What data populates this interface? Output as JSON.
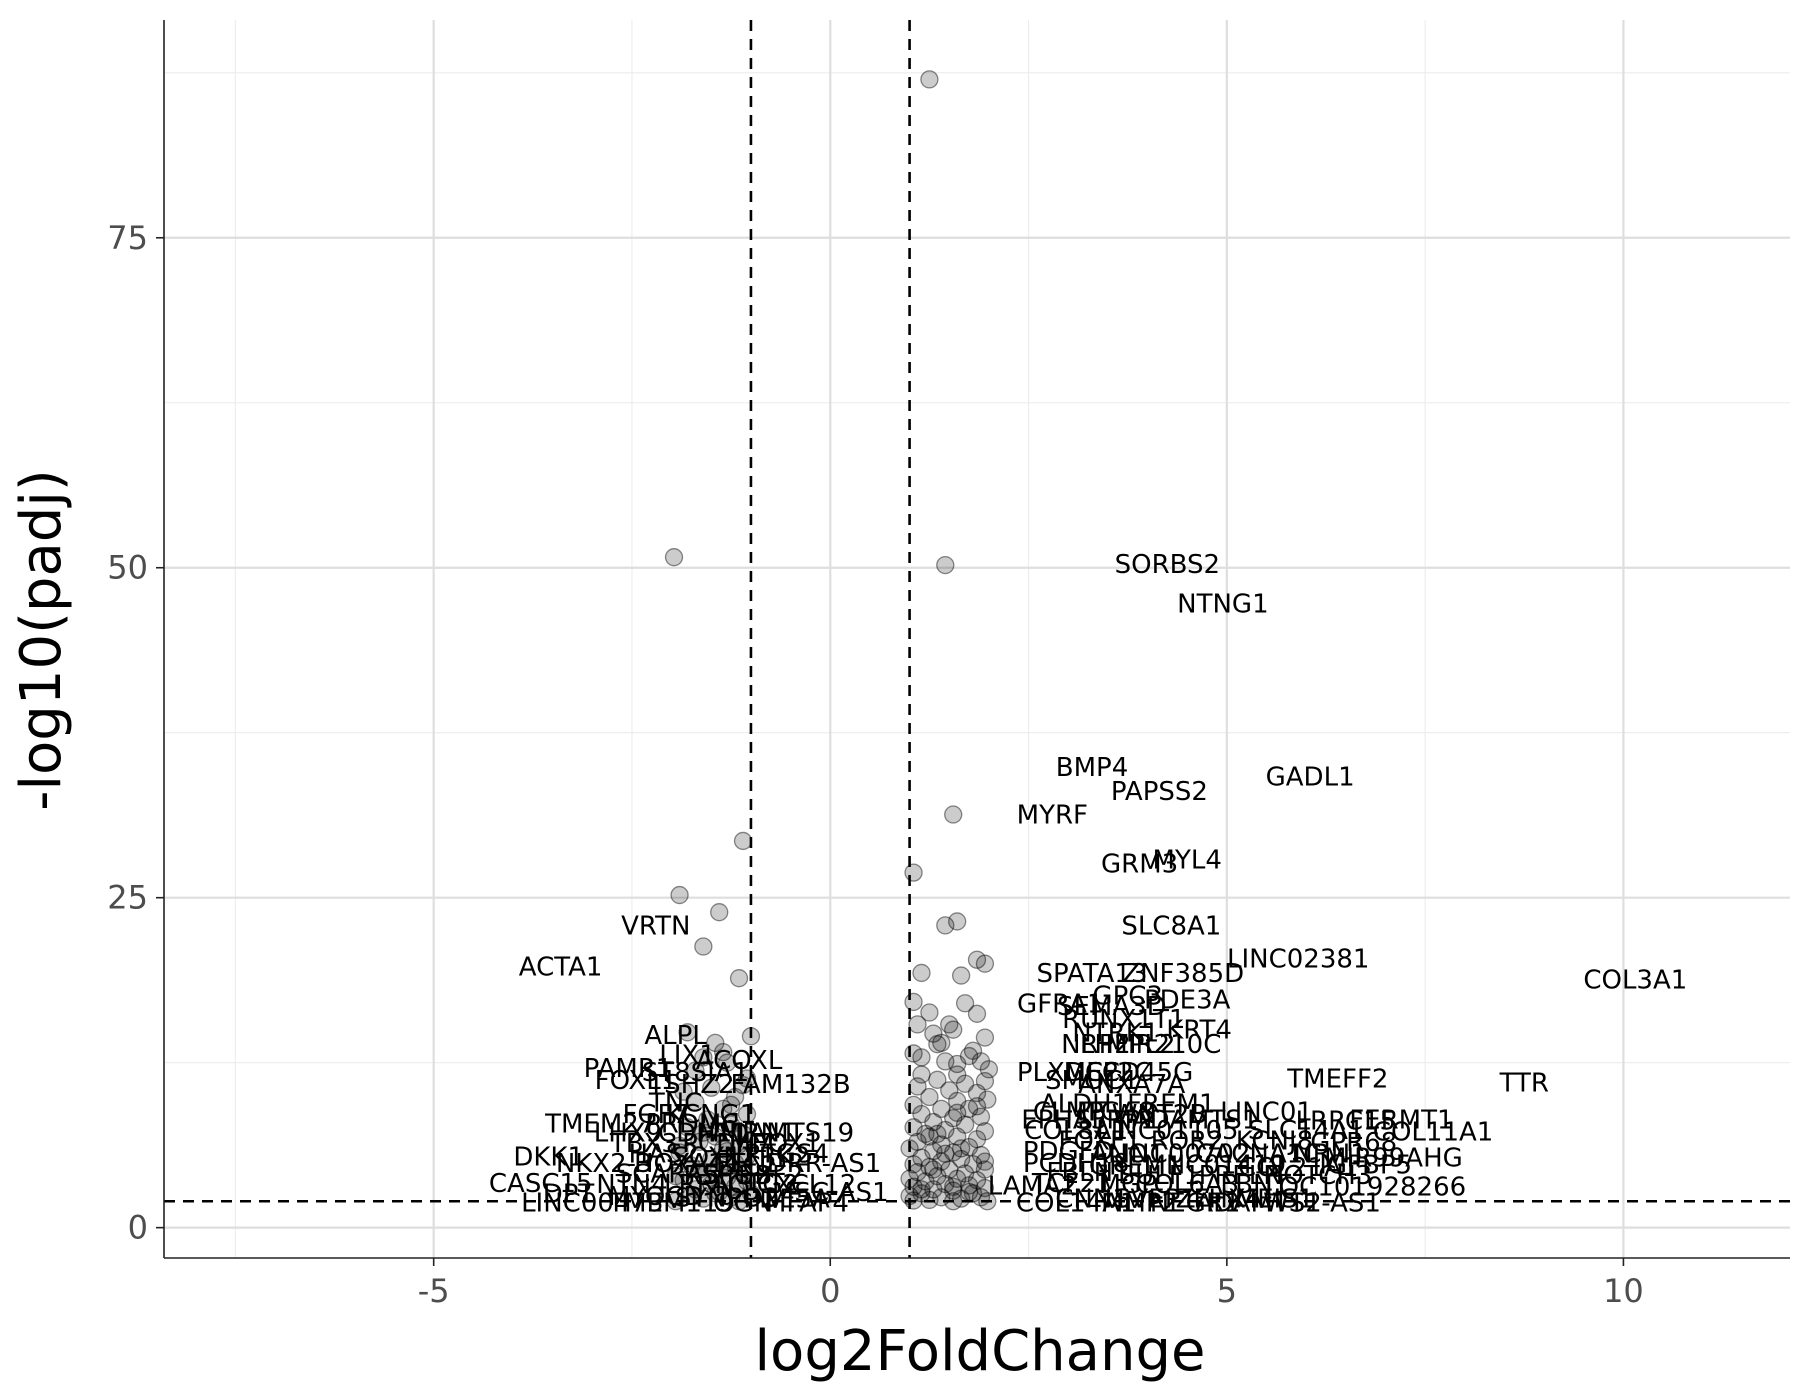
{
  "chart_data": {
    "type": "scatter",
    "xlabel": "log2FoldChange",
    "ylabel": "-log10(padj)",
    "xlim": [
      -8.4,
      12.1
    ],
    "ylim": [
      -2.3,
      91.5
    ],
    "x_ticks": [
      -5,
      0,
      5,
      10
    ],
    "x_tick_labels": [
      "-5",
      "0",
      "5",
      "10"
    ],
    "y_ticks": [
      0,
      25,
      50,
      75
    ],
    "y_tick_labels": [
      "0",
      "25",
      "50",
      "75"
    ],
    "grid": true,
    "legend": "none",
    "thresholds": {
      "vertical": [
        -1,
        1
      ],
      "horizontal": [
        2
      ]
    },
    "point_color": "#000000",
    "points": [
      [
        1.25,
        87.0
      ],
      [
        -1.97,
        50.8
      ],
      [
        1.45,
        50.2
      ],
      [
        1.55,
        31.3
      ],
      [
        -1.1,
        29.3
      ],
      [
        1.05,
        26.9
      ],
      [
        -1.9,
        25.2
      ],
      [
        -1.4,
        23.9
      ],
      [
        1.45,
        22.9
      ],
      [
        1.6,
        23.2
      ],
      [
        -1.6,
        21.3
      ],
      [
        1.85,
        20.3
      ],
      [
        1.95,
        20.0
      ],
      [
        1.15,
        19.3
      ],
      [
        1.65,
        19.1
      ],
      [
        -1.15,
        18.9
      ],
      [
        1.05,
        17.1
      ],
      [
        1.7,
        17.0
      ],
      [
        1.25,
        16.3
      ],
      [
        1.85,
        16.2
      ],
      [
        1.1,
        15.4
      ],
      [
        1.5,
        15.4
      ],
      [
        1.55,
        15.0
      ],
      [
        1.3,
        14.7
      ],
      [
        -1.0,
        14.5
      ],
      [
        1.95,
        14.4
      ],
      [
        1.4,
        14.0
      ],
      [
        -1.45,
        14.0
      ],
      [
        1.8,
        13.4
      ],
      [
        1.05,
        13.2
      ],
      [
        1.45,
        12.6
      ],
      [
        1.9,
        12.6
      ],
      [
        1.6,
        12.4
      ],
      [
        -1.3,
        12.5
      ],
      [
        -1.7,
        11.9
      ],
      [
        2.0,
        12.0
      ],
      [
        1.15,
        11.6
      ],
      [
        1.35,
        11.2
      ],
      [
        1.95,
        11.1
      ],
      [
        1.7,
        10.9
      ],
      [
        1.1,
        10.7
      ],
      [
        1.5,
        10.4
      ],
      [
        -1.1,
        10.8
      ],
      [
        -1.5,
        10.6
      ],
      [
        1.85,
        10.2
      ],
      [
        1.25,
        9.9
      ],
      [
        1.6,
        9.6
      ],
      [
        1.98,
        9.7
      ],
      [
        -1.2,
        9.9
      ],
      [
        -1.7,
        9.5
      ],
      [
        1.05,
        9.3
      ],
      [
        1.4,
        9.0
      ],
      [
        1.75,
        9.0
      ],
      [
        -1.35,
        9.0
      ],
      [
        1.15,
        8.6
      ],
      [
        1.55,
        8.3
      ],
      [
        1.9,
        8.4
      ],
      [
        -1.05,
        8.6
      ],
      [
        -1.55,
        8.2
      ],
      [
        1.3,
        8.0
      ],
      [
        1.7,
        7.8
      ],
      [
        1.05,
        7.6
      ],
      [
        -1.25,
        7.8
      ],
      [
        -1.8,
        7.6
      ],
      [
        1.45,
        7.4
      ],
      [
        1.95,
        7.3
      ],
      [
        1.2,
        7.1
      ],
      [
        1.6,
        6.9
      ],
      [
        -1.1,
        7.1
      ],
      [
        -1.45,
        6.9
      ],
      [
        1.85,
        6.7
      ],
      [
        1.1,
        6.5
      ],
      [
        1.4,
        6.3
      ],
      [
        -1.65,
        6.5
      ],
      [
        -1.15,
        6.3
      ],
      [
        1.75,
        6.1
      ],
      [
        1.0,
        6.0
      ],
      [
        1.3,
        5.8
      ],
      [
        1.55,
        5.7
      ],
      [
        -1.3,
        5.8
      ],
      [
        -1.9,
        5.7
      ],
      [
        1.9,
        5.5
      ],
      [
        1.15,
        5.3
      ],
      [
        1.65,
        5.2
      ],
      [
        -1.05,
        5.4
      ],
      [
        -1.5,
        5.2
      ],
      [
        1.4,
        5.0
      ],
      [
        1.05,
        4.8
      ],
      [
        1.8,
        4.8
      ],
      [
        -1.2,
        4.9
      ],
      [
        -1.75,
        4.7
      ],
      [
        1.25,
        4.6
      ],
      [
        1.5,
        4.4
      ],
      [
        1.95,
        4.4
      ],
      [
        -1.4,
        4.5
      ],
      [
        1.1,
        4.2
      ],
      [
        1.7,
        4.1
      ],
      [
        -1.1,
        4.2
      ],
      [
        -1.6,
        4.0
      ],
      [
        1.35,
        3.9
      ],
      [
        1.0,
        3.7
      ],
      [
        1.6,
        3.7
      ],
      [
        1.85,
        3.6
      ],
      [
        -1.3,
        3.8
      ],
      [
        -1.85,
        3.6
      ],
      [
        1.2,
        3.5
      ],
      [
        1.45,
        3.3
      ],
      [
        1.75,
        3.2
      ],
      [
        -1.05,
        3.5
      ],
      [
        -1.5,
        3.3
      ],
      [
        1.05,
        3.1
      ],
      [
        1.3,
        2.9
      ],
      [
        1.95,
        3.0
      ],
      [
        -1.2,
        3.1
      ],
      [
        -1.7,
        2.9
      ],
      [
        1.55,
        2.8
      ],
      [
        1.15,
        2.6
      ],
      [
        1.8,
        2.6
      ],
      [
        -1.4,
        2.7
      ],
      [
        -1.0,
        2.6
      ],
      [
        1.0,
        2.4
      ],
      [
        1.4,
        2.3
      ],
      [
        1.65,
        2.2
      ],
      [
        1.9,
        2.3
      ],
      [
        -1.25,
        2.3
      ],
      [
        -1.6,
        2.2
      ],
      [
        1.25,
        2.1
      ],
      [
        1.05,
        2.05
      ],
      [
        1.55,
        2.0
      ],
      [
        1.98,
        2.0
      ],
      [
        -1.15,
        2.0
      ],
      [
        -1.95,
        2.0
      ],
      [
        -1.8,
        14.8
      ],
      [
        -1.35,
        13.3
      ],
      [
        -1.6,
        12.9
      ],
      [
        -1.05,
        11.3
      ],
      [
        -1.85,
        10.3
      ],
      [
        -1.25,
        9.3
      ],
      [
        -1.6,
        7.2
      ],
      [
        -1.9,
        6.2
      ],
      [
        -1.35,
        6.0
      ],
      [
        -1.65,
        4.4
      ],
      [
        -1.95,
        3.9
      ],
      [
        -1.45,
        2.6
      ],
      [
        -1.75,
        2.4
      ],
      [
        1.35,
        13.9
      ],
      [
        1.75,
        13.0
      ],
      [
        1.15,
        12.9
      ],
      [
        1.6,
        11.6
      ],
      [
        1.85,
        9.2
      ],
      [
        1.35,
        7.1
      ],
      [
        1.65,
        6.0
      ],
      [
        1.95,
        5.0
      ],
      [
        1.3,
        4.4
      ],
      [
        1.55,
        3.1
      ],
      [
        1.75,
        2.7
      ],
      [
        1.15,
        2.9
      ],
      [
        1.45,
        5.6
      ],
      [
        1.25,
        6.9
      ],
      [
        1.6,
        8.7
      ]
    ],
    "labels": [
      {
        "text": "SORBS2",
        "x": 4.25,
        "y": 50.3
      },
      {
        "text": "NTNG1",
        "x": 4.95,
        "y": 47.3
      },
      {
        "text": "BMP4",
        "x": 3.3,
        "y": 34.9
      },
      {
        "text": "GADL1",
        "x": 6.05,
        "y": 34.2
      },
      {
        "text": "PAPSS2",
        "x": 4.15,
        "y": 33.1
      },
      {
        "text": "MYRF",
        "x": 2.8,
        "y": 31.3
      },
      {
        "text": "MYL4",
        "x": 4.5,
        "y": 27.9
      },
      {
        "text": "GRM3",
        "x": 3.9,
        "y": 27.6
      },
      {
        "text": "VRTN",
        "x": -2.2,
        "y": 22.9
      },
      {
        "text": "SLC8A1",
        "x": 4.3,
        "y": 22.9
      },
      {
        "text": "LINC02381",
        "x": 5.9,
        "y": 20.4
      },
      {
        "text": "ACTA1",
        "x": -3.4,
        "y": 19.8
      },
      {
        "text": "SPATA13",
        "x": 3.3,
        "y": 19.3
      },
      {
        "text": "ZNF385D",
        "x": 4.45,
        "y": 19.3
      },
      {
        "text": "COL3A1",
        "x": 10.15,
        "y": 18.8
      },
      {
        "text": "GPC3",
        "x": 3.75,
        "y": 17.6
      },
      {
        "text": "PDE3A",
        "x": 4.5,
        "y": 17.3
      },
      {
        "text": "GFRA1",
        "x": 2.9,
        "y": 17.0
      },
      {
        "text": "SEMA3D",
        "x": 3.55,
        "y": 16.8
      },
      {
        "text": "RUNX1T1",
        "x": 3.7,
        "y": 15.8
      },
      {
        "text": "KRT4",
        "x": 4.65,
        "y": 15.0
      },
      {
        "text": "NTRK1",
        "x": 3.6,
        "y": 14.8
      },
      {
        "text": "ALPL",
        "x": -1.95,
        "y": 14.6
      },
      {
        "text": "NRP2",
        "x": 3.35,
        "y": 13.9
      },
      {
        "text": "LHFPL2",
        "x": 3.75,
        "y": 13.9
      },
      {
        "text": "MIR210C",
        "x": 4.2,
        "y": 13.9
      },
      {
        "text": "LIX1",
        "x": -1.8,
        "y": 13.1
      },
      {
        "text": "ACOXL",
        "x": -1.15,
        "y": 12.7
      },
      {
        "text": "PAMR1",
        "x": -2.55,
        "y": 12.1
      },
      {
        "text": "ST8SIA1",
        "x": -1.7,
        "y": 11.8
      },
      {
        "text": "FOXL1",
        "x": -2.45,
        "y": 11.2
      },
      {
        "text": "TSHZ2",
        "x": -1.75,
        "y": 10.9
      },
      {
        "text": "FAM132B",
        "x": -0.5,
        "y": 10.9
      },
      {
        "text": "PLXDC2",
        "x": 3.0,
        "y": 11.8
      },
      {
        "text": "MEF2C",
        "x": 3.5,
        "y": 11.8
      },
      {
        "text": "CD45G",
        "x": 4.0,
        "y": 11.8
      },
      {
        "text": "TMEFF2",
        "x": 6.4,
        "y": 11.3
      },
      {
        "text": "TTR",
        "x": 8.75,
        "y": 11.0
      },
      {
        "text": "SMOC1",
        "x": 3.3,
        "y": 11.2
      },
      {
        "text": "ANXA7A",
        "x": 3.8,
        "y": 10.9
      },
      {
        "text": "TNC",
        "x": -1.95,
        "y": 9.5
      },
      {
        "text": "ALDH1",
        "x": 3.2,
        "y": 9.4
      },
      {
        "text": "FREM1",
        "x": 4.3,
        "y": 9.4
      },
      {
        "text": "FGF7",
        "x": -2.2,
        "y": 8.6
      },
      {
        "text": "KCNG1",
        "x": -1.5,
        "y": 8.6
      },
      {
        "text": "CLMP",
        "x": 3.0,
        "y": 8.8
      },
      {
        "text": "ITGA8",
        "x": 3.6,
        "y": 8.8
      },
      {
        "text": "WNT2B",
        "x": 4.15,
        "y": 8.6
      },
      {
        "text": "LINC01",
        "x": 5.5,
        "y": 8.8
      },
      {
        "text": "TMEM27",
        "x": -2.9,
        "y": 7.9
      },
      {
        "text": "PRDM6",
        "x": -1.75,
        "y": 7.9
      },
      {
        "text": "FERMT1",
        "x": 7.2,
        "y": 8.2
      },
      {
        "text": "EPHA3",
        "x": 2.95,
        "y": 8.2
      },
      {
        "text": "SFRP1",
        "x": 3.6,
        "y": 8.2
      },
      {
        "text": "ADAMTS1",
        "x": 4.6,
        "y": 8.2
      },
      {
        "text": "LRRC15",
        "x": 6.5,
        "y": 8.1
      },
      {
        "text": "LHX9",
        "x": -2.55,
        "y": 7.2
      },
      {
        "text": "CDH11",
        "x": -1.6,
        "y": 7.2
      },
      {
        "text": "MMRN1",
        "x": -1.05,
        "y": 7.2
      },
      {
        "text": "ADAMTS19",
        "x": -0.6,
        "y": 7.2
      },
      {
        "text": "COL8A1",
        "x": 3.1,
        "y": 7.4
      },
      {
        "text": "LINC01105",
        "x": 4.25,
        "y": 7.4
      },
      {
        "text": "SLC14A1",
        "x": 6.0,
        "y": 7.4
      },
      {
        "text": "COL11A1",
        "x": 7.6,
        "y": 7.3
      },
      {
        "text": "TBX3",
        "x": -2.35,
        "y": 6.4
      },
      {
        "text": "PCDH7",
        "x": -1.3,
        "y": 6.4
      },
      {
        "text": "MEOX1",
        "x": -0.7,
        "y": 6.4
      },
      {
        "text": "FOXF1",
        "x": 3.4,
        "y": 6.6
      },
      {
        "text": "ROR2",
        "x": 4.5,
        "y": 6.6
      },
      {
        "text": "KCNJ8",
        "x": 5.6,
        "y": 6.6
      },
      {
        "text": "GPR68",
        "x": 6.6,
        "y": 6.5
      },
      {
        "text": "DKK1",
        "x": -3.55,
        "y": 5.4
      },
      {
        "text": "HAS2",
        "x": -2.1,
        "y": 5.6
      },
      {
        "text": "SOX11",
        "x": -1.45,
        "y": 5.4
      },
      {
        "text": "NTRK2",
        "x": -0.8,
        "y": 5.4
      },
      {
        "text": "PTGS4",
        "x": -0.55,
        "y": 5.6
      },
      {
        "text": "PDGFD",
        "x": 3.0,
        "y": 5.8
      },
      {
        "text": "ANO1",
        "x": 3.75,
        "y": 5.6
      },
      {
        "text": "LINC00702",
        "x": 4.4,
        "y": 5.6
      },
      {
        "text": "CACNA1C",
        "x": 5.4,
        "y": 5.6
      },
      {
        "text": "NRN1",
        "x": 6.3,
        "y": 5.6
      },
      {
        "text": "MIR99AHG",
        "x": 7.1,
        "y": 5.3
      },
      {
        "text": "NKX2-3",
        "x": -2.85,
        "y": 4.9
      },
      {
        "text": "HOXA11",
        "x": -1.8,
        "y": 4.9
      },
      {
        "text": "ZIC2",
        "x": -1.05,
        "y": 4.7
      },
      {
        "text": "FENDRR-AS1",
        "x": -0.4,
        "y": 4.9
      },
      {
        "text": "PCDH18",
        "x": 3.1,
        "y": 4.9
      },
      {
        "text": "GREM1",
        "x": 3.85,
        "y": 4.7
      },
      {
        "text": "LINC01419",
        "x": 4.85,
        "y": 4.8
      },
      {
        "text": "COL21A1",
        "x": 5.9,
        "y": 4.6
      },
      {
        "text": "IGFBP5",
        "x": 6.75,
        "y": 4.8
      },
      {
        "text": "SCARA5",
        "x": -2.05,
        "y": 4.1
      },
      {
        "text": "RSPO3",
        "x": -1.3,
        "y": 4.0
      },
      {
        "text": "EBF2",
        "x": -0.75,
        "y": 4.0
      },
      {
        "text": "FBLN1",
        "x": 3.25,
        "y": 4.2
      },
      {
        "text": "SULF1",
        "x": 4.15,
        "y": 4.0
      },
      {
        "text": "PRELP",
        "x": 5.15,
        "y": 4.0
      },
      {
        "text": "NOTCH3",
        "x": 6.15,
        "y": 4.0
      },
      {
        "text": "CASC15",
        "x": -3.65,
        "y": 3.4
      },
      {
        "text": "NTN4",
        "x": -2.5,
        "y": 3.3
      },
      {
        "text": "LRRN3",
        "x": -1.55,
        "y": 3.3
      },
      {
        "text": "ACTG2",
        "x": -0.95,
        "y": 3.3
      },
      {
        "text": "CXCL12",
        "x": -0.3,
        "y": 3.3
      },
      {
        "text": "TCF21",
        "x": 3.05,
        "y": 3.4
      },
      {
        "text": "MGP",
        "x": 3.75,
        "y": 3.3
      },
      {
        "text": "COL6A3",
        "x": 4.5,
        "y": 3.3
      },
      {
        "text": "FBN1",
        "x": 5.35,
        "y": 3.3
      },
      {
        "text": "LOC101928266",
        "x": 6.75,
        "y": 3.1
      },
      {
        "text": "LAMA2",
        "x": 2.55,
        "y": 3.2
      },
      {
        "text": "MSC-AS1",
        "x": 0.0,
        "y": 2.7
      },
      {
        "text": "DPT",
        "x": -3.3,
        "y": 2.6
      },
      {
        "text": "MYOCD",
        "x": -2.2,
        "y": 2.4
      },
      {
        "text": "SYNPO2",
        "x": -1.3,
        "y": 2.3
      },
      {
        "text": "PDE5A",
        "x": -0.55,
        "y": 2.2
      },
      {
        "text": "CNN1",
        "x": 3.3,
        "y": 2.2
      },
      {
        "text": "SVEP1",
        "x": 4.1,
        "y": 2.2
      },
      {
        "text": "ZFHX4",
        "x": 4.9,
        "y": 2.2
      },
      {
        "text": "MEIS1",
        "x": 5.6,
        "y": 2.2
      },
      {
        "text": "LINC00473",
        "x": -3.0,
        "y": 1.9
      },
      {
        "text": "TMEM119",
        "x": -2.0,
        "y": 1.9
      },
      {
        "text": "OGN",
        "x": -1.1,
        "y": 1.9
      },
      {
        "text": "MFAP4",
        "x": -0.3,
        "y": 1.9
      },
      {
        "text": "COL14A1",
        "x": 3.1,
        "y": 1.9
      },
      {
        "text": "MMP2",
        "x": 3.9,
        "y": 1.9
      },
      {
        "text": "NEGR1",
        "x": 4.6,
        "y": 1.9
      },
      {
        "text": "ADAMTS2",
        "x": 5.4,
        "y": 1.9
      },
      {
        "text": "WT1-AS1",
        "x": 6.2,
        "y": 1.9
      }
    ]
  }
}
